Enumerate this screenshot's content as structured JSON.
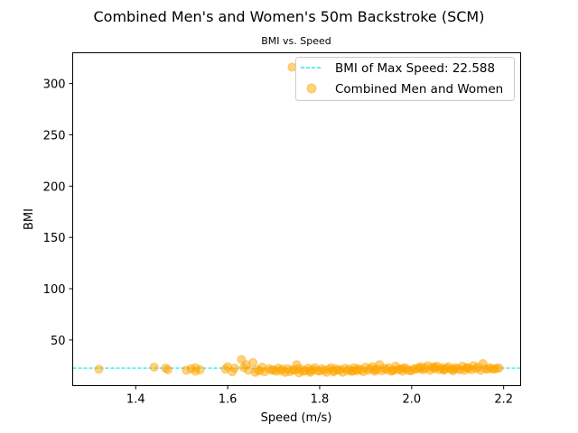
{
  "chart_data": {
    "type": "scatter",
    "title": "Combined Men's and Women's 50m Backstroke (SCM)",
    "subtitle": "BMI vs. Speed",
    "xlabel": "Speed (m/s)",
    "ylabel": "BMI",
    "xlim": [
      1.263,
      2.237
    ],
    "ylim": [
      5.5,
      330
    ],
    "xticks": [
      "1.4",
      "1.6",
      "1.8",
      "2.0",
      "2.2"
    ],
    "xtick_values": [
      1.4,
      1.6,
      1.8,
      2.0,
      2.2
    ],
    "yticks": [
      "50",
      "100",
      "150",
      "200",
      "250",
      "300"
    ],
    "ytick_values": [
      50,
      100,
      150,
      200,
      250,
      300
    ],
    "grid": false,
    "legend_position": "upper right",
    "reference_line": {
      "label": "BMI of Max Speed: 22.588",
      "y": 22.588,
      "color": "#00e5ee",
      "style": "dashed"
    },
    "series": [
      {
        "name": "Combined Men and Women",
        "color": "#ffa500",
        "x": [
          1.32,
          1.44,
          1.465,
          1.47,
          1.51,
          1.52,
          1.53,
          1.53,
          1.54,
          1.595,
          1.6,
          1.61,
          1.615,
          1.63,
          1.635,
          1.64,
          1.645,
          1.655,
          1.66,
          1.665,
          1.67,
          1.675,
          1.68,
          1.69,
          1.695,
          1.7,
          1.705,
          1.71,
          1.715,
          1.72,
          1.725,
          1.73,
          1.735,
          1.74,
          1.74,
          1.745,
          1.75,
          1.752,
          1.755,
          1.76,
          1.765,
          1.77,
          1.775,
          1.78,
          1.785,
          1.79,
          1.795,
          1.8,
          1.805,
          1.81,
          1.815,
          1.82,
          1.825,
          1.83,
          1.835,
          1.84,
          1.845,
          1.85,
          1.855,
          1.86,
          1.865,
          1.87,
          1.875,
          1.88,
          1.885,
          1.89,
          1.895,
          1.9,
          1.905,
          1.91,
          1.915,
          1.92,
          1.925,
          1.93,
          1.935,
          1.94,
          1.945,
          1.95,
          1.955,
          1.96,
          1.965,
          1.97,
          1.975,
          1.98,
          1.985,
          1.99,
          1.995,
          2.0,
          2.005,
          2.01,
          2.015,
          2.02,
          2.025,
          2.03,
          2.035,
          2.04,
          2.045,
          2.05,
          2.055,
          2.06,
          2.065,
          2.07,
          2.075,
          2.08,
          2.085,
          2.09,
          2.095,
          2.1,
          2.105,
          2.11,
          2.115,
          2.12,
          2.125,
          2.13,
          2.135,
          2.14,
          2.145,
          2.15,
          2.155,
          2.16,
          2.165,
          2.17,
          2.175,
          2.18,
          2.185,
          2.19,
          1.83,
          1.87,
          1.92,
          1.96,
          2.02,
          2.07,
          2.12,
          1.78,
          1.88,
          1.98,
          2.05,
          2.09
        ],
        "y": [
          21.5,
          23.5,
          22.5,
          21.0,
          20.5,
          22.0,
          19.5,
          23.0,
          21.0,
          21.5,
          24.0,
          19.0,
          22.5,
          31.0,
          23.0,
          26.0,
          20.5,
          28.0,
          18.5,
          21.0,
          20.0,
          23.5,
          19.0,
          22.0,
          20.5,
          21.0,
          19.5,
          22.5,
          20.0,
          21.5,
          18.5,
          22.0,
          19.0,
          21.0,
          316.0,
          20.5,
          26.0,
          22.0,
          18.0,
          21.5,
          19.5,
          20.0,
          22.5,
          18.5,
          21.0,
          23.0,
          20.0,
          19.5,
          22.0,
          20.5,
          18.5,
          21.5,
          23.0,
          19.0,
          22.0,
          20.5,
          21.0,
          18.5,
          22.5,
          20.0,
          21.5,
          19.5,
          23.0,
          20.0,
          22.0,
          21.0,
          19.0,
          23.5,
          20.5,
          22.0,
          24.0,
          19.5,
          21.5,
          26.0,
          20.0,
          22.5,
          21.0,
          23.0,
          19.5,
          20.5,
          24.5,
          21.0,
          22.0,
          19.5,
          23.0,
          21.5,
          20.0,
          20.0,
          22.0,
          21.5,
          23.0,
          24.0,
          21.0,
          22.5,
          25.0,
          20.5,
          23.5,
          22.0,
          24.5,
          21.0,
          23.0,
          20.5,
          22.5,
          24.0,
          21.5,
          20.0,
          23.0,
          22.0,
          21.0,
          24.5,
          20.5,
          23.0,
          22.5,
          21.0,
          25.0,
          22.0,
          23.5,
          20.5,
          27.0,
          22.0,
          21.5,
          23.0,
          22.0,
          21.5,
          22.5,
          22.588,
          20.0,
          19.5,
          21.0,
          20.5,
          22.0,
          21.5,
          23.0,
          20.0,
          21.0,
          22.0,
          23.5,
          21.5
        ]
      }
    ]
  }
}
